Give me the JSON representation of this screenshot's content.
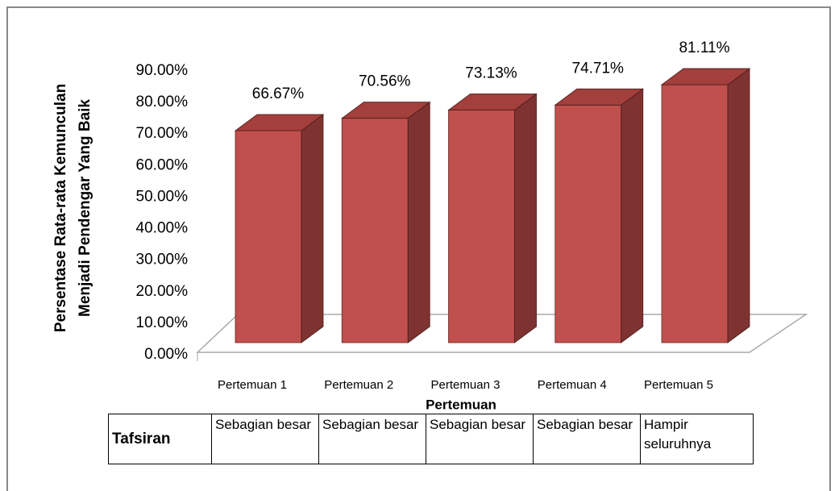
{
  "chart_data": {
    "type": "bar3d",
    "ylabel": [
      "Persentase Rata-rata Kemunculan",
      "Menjadi Pendengar Yang Baik"
    ],
    "xlabel": "Pertemuan",
    "categories": [
      "Pertemuan 1",
      "Pertemuan 2",
      "Pertemuan 3",
      "Pertemuan 4",
      "Pertemuan 5"
    ],
    "values": [
      66.67,
      70.56,
      73.13,
      74.71,
      81.11
    ],
    "value_labels": [
      "66.67%",
      "70.56%",
      "73.13%",
      "74.71%",
      "81.11%"
    ],
    "color": "#c0504d",
    "side_color": "#7f3331",
    "top_color": "#a33f3c",
    "ylim": [
      0,
      90
    ],
    "yticks": [
      {
        "value": 0,
        "label": "0.00%"
      },
      {
        "value": 10,
        "label": "10.00%"
      },
      {
        "value": 20,
        "label": "20.00%"
      },
      {
        "value": 30,
        "label": "30.00%"
      },
      {
        "value": 40,
        "label": "40.00%"
      },
      {
        "value": 50,
        "label": "50.00%"
      },
      {
        "value": 60,
        "label": "60.00%"
      },
      {
        "value": 70,
        "label": "70.00%"
      },
      {
        "value": 80,
        "label": "80.00%"
      },
      {
        "value": 90,
        "label": "90.00%"
      }
    ],
    "grid": false
  },
  "table": {
    "header": "Tafsiran",
    "cells": [
      "Sebagian besar",
      "Sebagian besar",
      "Sebagian besar",
      "Sebagian besar",
      "Hampir seluruhnya"
    ]
  }
}
